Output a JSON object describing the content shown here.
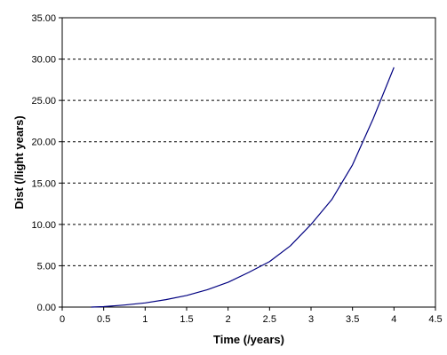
{
  "chart_data": {
    "type": "line",
    "title": "",
    "xlabel": "Time (/years)",
    "ylabel": "Dist (/light years)",
    "xlim": [
      0,
      4.5
    ],
    "ylim": [
      0,
      35
    ],
    "x_ticks": [
      "0",
      "0.5",
      "1",
      "1.5",
      "2",
      "2.5",
      "3",
      "3.5",
      "4",
      "4.5"
    ],
    "y_ticks": [
      "0.00",
      "5.00",
      "10.00",
      "15.00",
      "20.00",
      "25.00",
      "30.00",
      "35.00"
    ],
    "grid": {
      "x": false,
      "y": true,
      "style": "dashed"
    },
    "legend": "none",
    "series": [
      {
        "color": "#000080",
        "x": [
          0.35,
          0.5,
          0.75,
          1.0,
          1.25,
          1.5,
          1.75,
          2.0,
          2.25,
          2.5,
          2.75,
          3.0,
          3.25,
          3.5,
          3.75,
          4.0
        ],
        "y": [
          0.0,
          0.05,
          0.25,
          0.5,
          0.9,
          1.4,
          2.1,
          3.0,
          4.2,
          5.5,
          7.4,
          10.0,
          13.0,
          17.2,
          22.8,
          29.0
        ]
      }
    ]
  }
}
